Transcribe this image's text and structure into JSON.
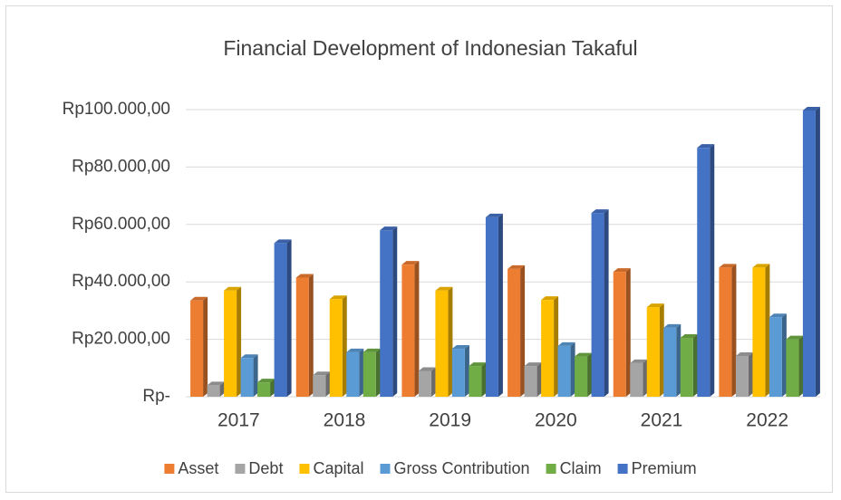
{
  "chart_data": {
    "type": "bar",
    "title": "Financial Development of Indonesian Takaful",
    "categories": [
      "2017",
      "2018",
      "2019",
      "2020",
      "2021",
      "2022"
    ],
    "series": [
      {
        "name": "Asset",
        "color": "#ed7d31",
        "values": [
          33500,
          41500,
          46000,
          44500,
          43500,
          45000
        ]
      },
      {
        "name": "Debt",
        "color": "#a5a5a5",
        "values": [
          4000,
          7500,
          9000,
          10700,
          11700,
          14200
        ]
      },
      {
        "name": "Capital",
        "color": "#ffc000",
        "values": [
          37000,
          34000,
          37000,
          33700,
          31200,
          45000
        ]
      },
      {
        "name": "Gross Contribution",
        "color": "#5b9bd5",
        "values": [
          13500,
          15500,
          16700,
          17700,
          24000,
          27700
        ]
      },
      {
        "name": "Claim",
        "color": "#70ad47",
        "values": [
          5000,
          15500,
          10700,
          14000,
          20500,
          20000
        ]
      },
      {
        "name": "Premium",
        "color": "#4472c4",
        "values": [
          53500,
          58000,
          62500,
          64000,
          86700,
          99700
        ]
      }
    ],
    "ylim": [
      0,
      100000
    ],
    "yticks": [
      {
        "value": 0,
        "label": "Rp-"
      },
      {
        "value": 20000,
        "label": "Rp20.000,00"
      },
      {
        "value": 40000,
        "label": "Rp40.000,00"
      },
      {
        "value": 60000,
        "label": "Rp60.000,00"
      },
      {
        "value": 80000,
        "label": "Rp80.000,00"
      },
      {
        "value": 100000,
        "label": "Rp100.000,00"
      }
    ],
    "grid": true,
    "legend": "bottom"
  }
}
